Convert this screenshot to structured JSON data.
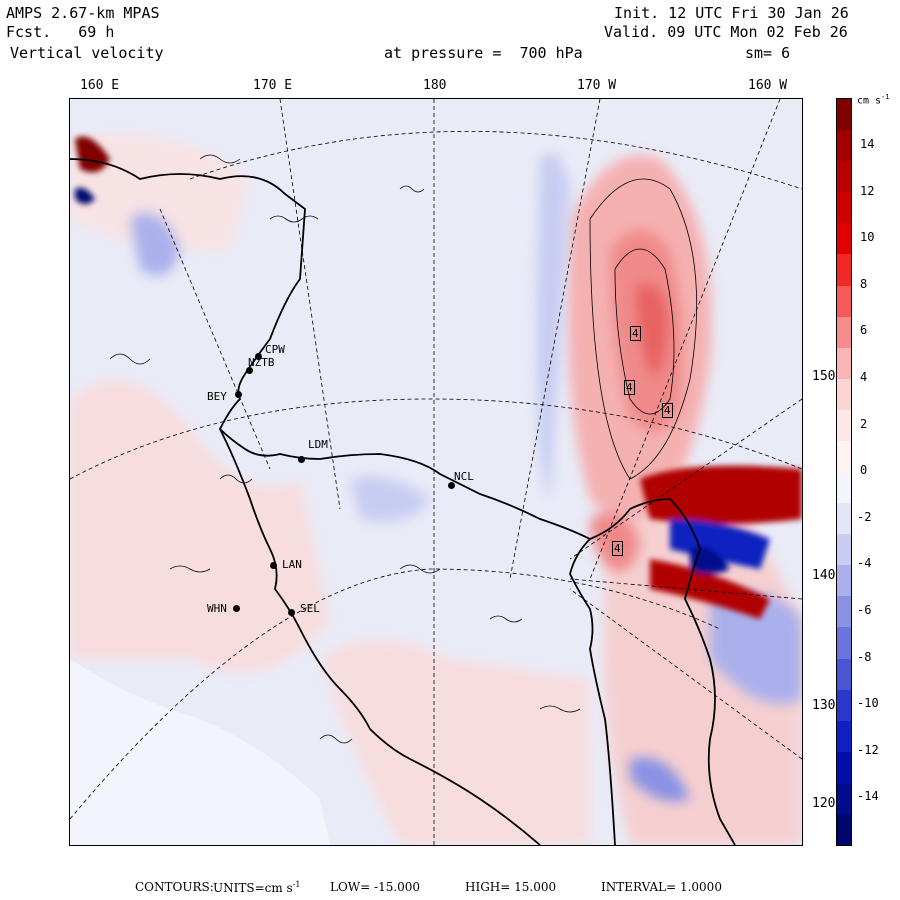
{
  "header": {
    "model": "AMPS 2.67-km MPAS",
    "forecast": "Fcst.   69 h",
    "field": "Vertical velocity",
    "init": "Init. 12 UTC Fri 30 Jan 26",
    "valid": "Valid. 09 UTC Mon 02 Feb 26",
    "pressure": "at pressure =  700 hPa",
    "smoothing": "sm= 6"
  },
  "axes": {
    "top_longitudes": [
      "160 E",
      "170 E",
      "180",
      "170 W",
      "160 W"
    ],
    "right_longitudes": [
      "150 W",
      "140 W",
      "130 W",
      "120 W"
    ]
  },
  "stations": [
    "CPW",
    "NZTB",
    "BEY",
    "LDM",
    "NCL",
    "LAN",
    "WHN",
    "SEL"
  ],
  "contour_labels": [
    "4",
    "4",
    "4",
    "4"
  ],
  "colorbar": {
    "unit": "cm s",
    "unit_exp": "-1",
    "tick_labels": [
      "14",
      "12",
      "10",
      "8",
      "6",
      "4",
      "2",
      "0",
      "-2",
      "-4",
      "-6",
      "-8",
      "-10",
      "-12",
      "-14"
    ],
    "colors": [
      "#800000",
      "#a00000",
      "#b80000",
      "#cc0000",
      "#e00000",
      "#f02828",
      "#f55a5a",
      "#f78c8c",
      "#f9b4b4",
      "#fbd4d4",
      "#fce8e8",
      "#fdf3f3",
      "#f4f4fc",
      "#e4e6f8",
      "#c8ccf2",
      "#aab0ec",
      "#8a92e4",
      "#6a74dc",
      "#4a56d4",
      "#2a38cc",
      "#1020c0",
      "#0010a8",
      "#000c8c",
      "#000870"
    ]
  },
  "footer": {
    "contours": "CONTOURS:",
    "units_prefix": "UNITS=cm s",
    "units_exp": "-1",
    "low": "LOW= -15.000",
    "high": "HIGH=  15.000",
    "interval": "INTERVAL=   1.0000"
  },
  "map_colors": {
    "background_blue": "#e9ebf7",
    "pale_red": "#f9dcdc",
    "red": "#f08a8a",
    "dark_red": "#b00000",
    "blue": "#8a92e4",
    "dark_blue": "#1020c0"
  }
}
